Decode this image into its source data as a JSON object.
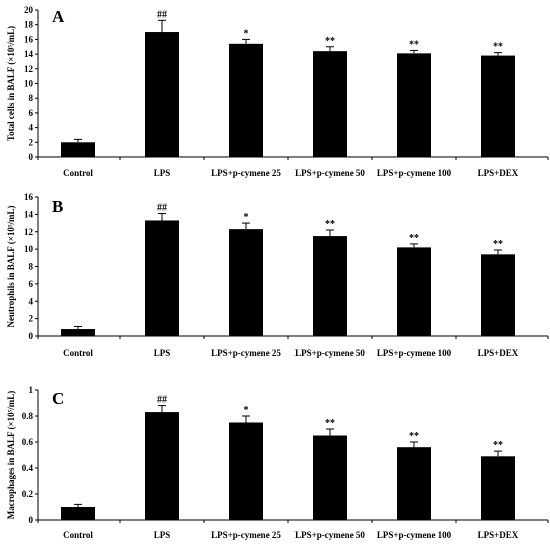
{
  "figure": {
    "background": "#ffffff",
    "bar_color": "#000000"
  },
  "chart_data": [
    {
      "type": "bar",
      "panel": "A",
      "ylabel": "Total cells in BALF (×10⁵/mL)",
      "ylim": [
        0,
        20
      ],
      "yticks": [
        0,
        2,
        4,
        6,
        8,
        10,
        12,
        14,
        16,
        18,
        20
      ],
      "categories": [
        "Control",
        "LPS",
        "LPS+p-cymene 25",
        "LPS+p-cymene 50",
        "LPS+p-cymene 100",
        "LPS+DEX"
      ],
      "values": [
        2.0,
        17.0,
        15.4,
        14.4,
        14.1,
        13.8
      ],
      "errors": [
        0.4,
        1.6,
        0.6,
        0.6,
        0.4,
        0.4
      ],
      "significance": [
        "",
        "##",
        "*",
        "**",
        "**",
        "**"
      ]
    },
    {
      "type": "bar",
      "panel": "B",
      "ylabel": "Neutrophils in BALF (×10⁵/mL)",
      "ylim": [
        0,
        16
      ],
      "yticks": [
        0,
        2,
        4,
        6,
        8,
        10,
        12,
        14,
        16
      ],
      "categories": [
        "Control",
        "LPS",
        "LPS+p-cymene 25",
        "LPS+p-cymene 50",
        "LPS+p-cymene 100",
        "LPS+DEX"
      ],
      "values": [
        0.8,
        13.3,
        12.3,
        11.5,
        10.2,
        9.4
      ],
      "errors": [
        0.3,
        0.8,
        0.7,
        0.7,
        0.4,
        0.5
      ],
      "significance": [
        "",
        "##",
        "*",
        "**",
        "**",
        "**"
      ]
    },
    {
      "type": "bar",
      "panel": "C",
      "ylabel": "Macrophages in BALF (×10⁵/mL)",
      "ylim": [
        0,
        1
      ],
      "yticks": [
        0,
        0.2,
        0.4,
        0.6,
        0.8,
        1
      ],
      "categories": [
        "Control",
        "LPS",
        "LPS+p-cymene 25",
        "LPS+p-cymene 50",
        "LPS+p-cymene 100",
        "LPS+DEX"
      ],
      "values": [
        0.1,
        0.83,
        0.75,
        0.65,
        0.56,
        0.49
      ],
      "errors": [
        0.02,
        0.05,
        0.05,
        0.05,
        0.04,
        0.04
      ],
      "significance": [
        "",
        "##",
        "*",
        "**",
        "**",
        "**"
      ]
    }
  ]
}
